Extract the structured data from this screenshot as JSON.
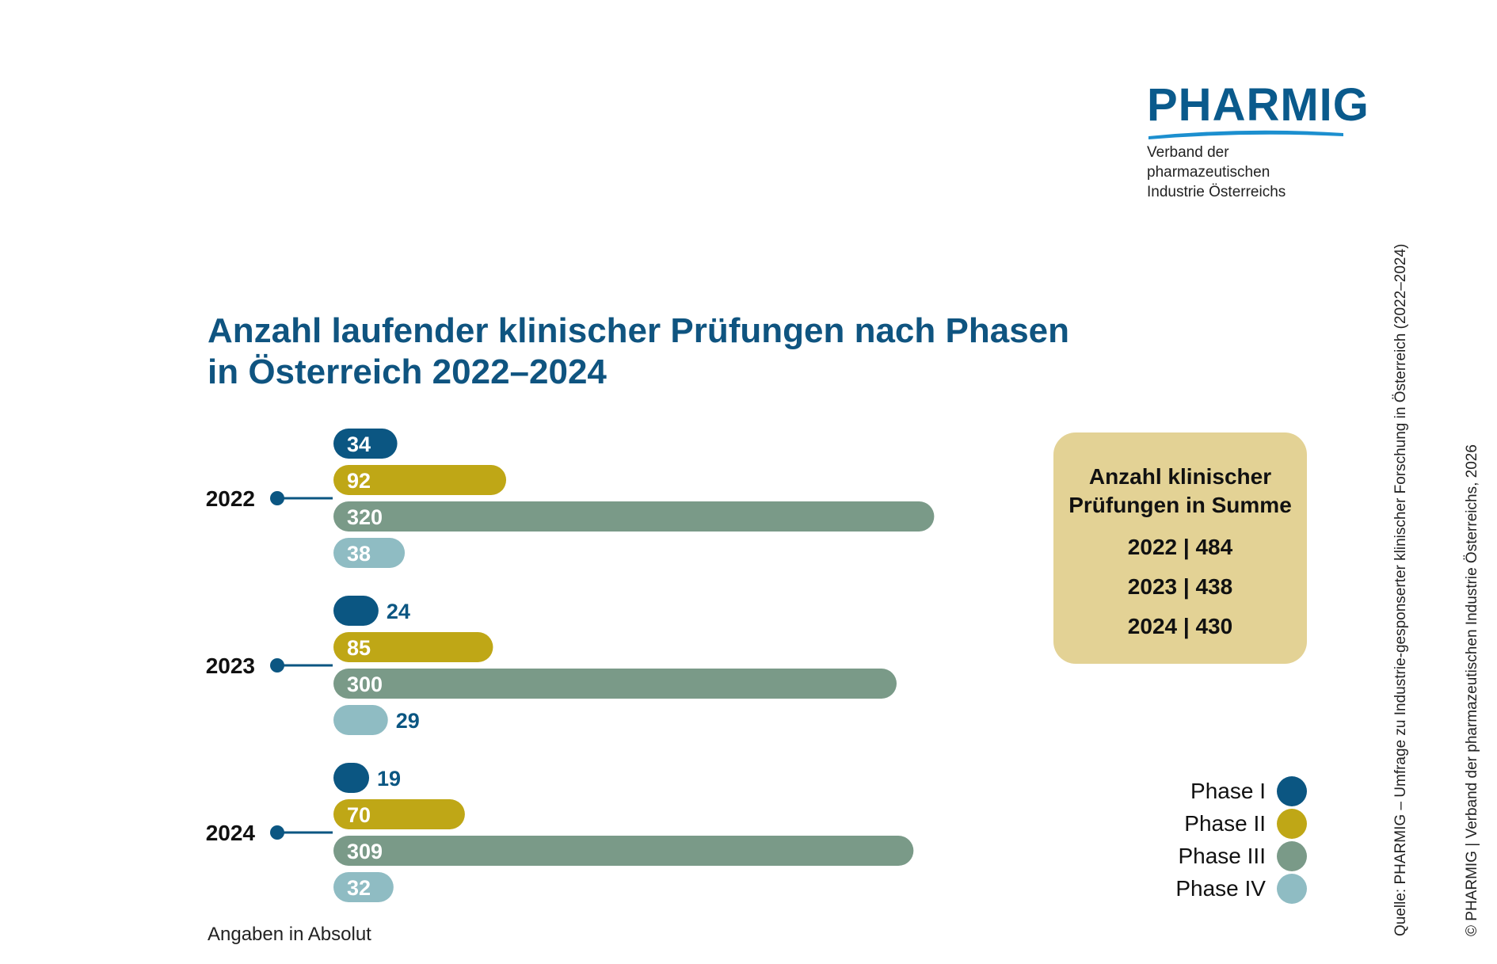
{
  "logo": {
    "name": "PHARMIG",
    "subtitle_line1": "Verband der pharmazeutischen",
    "subtitle_line2": "Industrie Österreichs"
  },
  "title_line1": "Anzahl laufender klinischer Prüfungen nach Phasen",
  "title_line2": "in Österreich 2022–2024",
  "summary": {
    "title_line1": "Anzahl klinischer",
    "title_line2": "Prüfungen in Summe",
    "lines": [
      "2022 | 484",
      "2023 | 438",
      "2024 | 430"
    ]
  },
  "legend": [
    {
      "label": "Phase I",
      "color": "#0b5682"
    },
    {
      "label": "Phase II",
      "color": "#bfa716"
    },
    {
      "label": "Phase III",
      "color": "#7a9a88"
    },
    {
      "label": "Phase IV",
      "color": "#8fbcc3"
    }
  ],
  "note": "Angaben in Absolut",
  "source": "Quelle: PHARMIG – Umfrage zu Industrie-gesponserter klinischer Forschung in Österreich (2022–2024)",
  "copyright": "© PHARMIG | Verband der pharmazeutischen Industrie Österreichs, 2026",
  "chart_data": {
    "type": "bar",
    "orientation": "horizontal",
    "categories": [
      "2022",
      "2023",
      "2024"
    ],
    "series": [
      {
        "name": "Phase I",
        "color": "#0b5682",
        "values": [
          34,
          24,
          19
        ]
      },
      {
        "name": "Phase II",
        "color": "#bfa716",
        "values": [
          92,
          85,
          70
        ]
      },
      {
        "name": "Phase III",
        "color": "#7a9a88",
        "values": [
          320,
          300,
          309
        ]
      },
      {
        "name": "Phase IV",
        "color": "#8fbcc3",
        "values": [
          38,
          29,
          32
        ]
      }
    ]
  }
}
